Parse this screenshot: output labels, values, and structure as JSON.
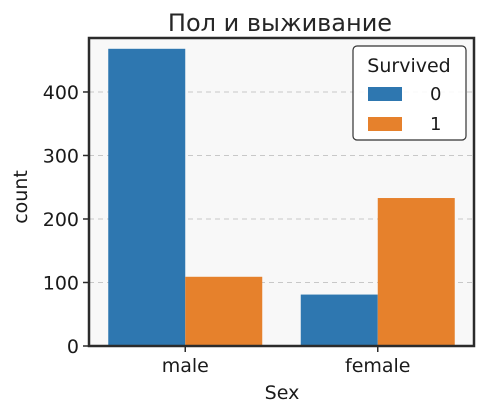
{
  "chart_data": {
    "type": "bar",
    "title": "Пол и выживание",
    "xlabel": "Sex",
    "ylabel": "count",
    "categories": [
      "male",
      "female"
    ],
    "series": [
      {
        "name": "0",
        "values": [
          468,
          81
        ],
        "color": "#2e77b0"
      },
      {
        "name": "1",
        "values": [
          109,
          233
        ],
        "color": "#e6812c"
      }
    ],
    "ylim": [
      0,
      485
    ],
    "yticks": [
      0,
      100,
      200,
      300,
      400
    ],
    "grid": "horizontal dashed",
    "legend": {
      "title": "Survived",
      "position": "top-right"
    }
  }
}
